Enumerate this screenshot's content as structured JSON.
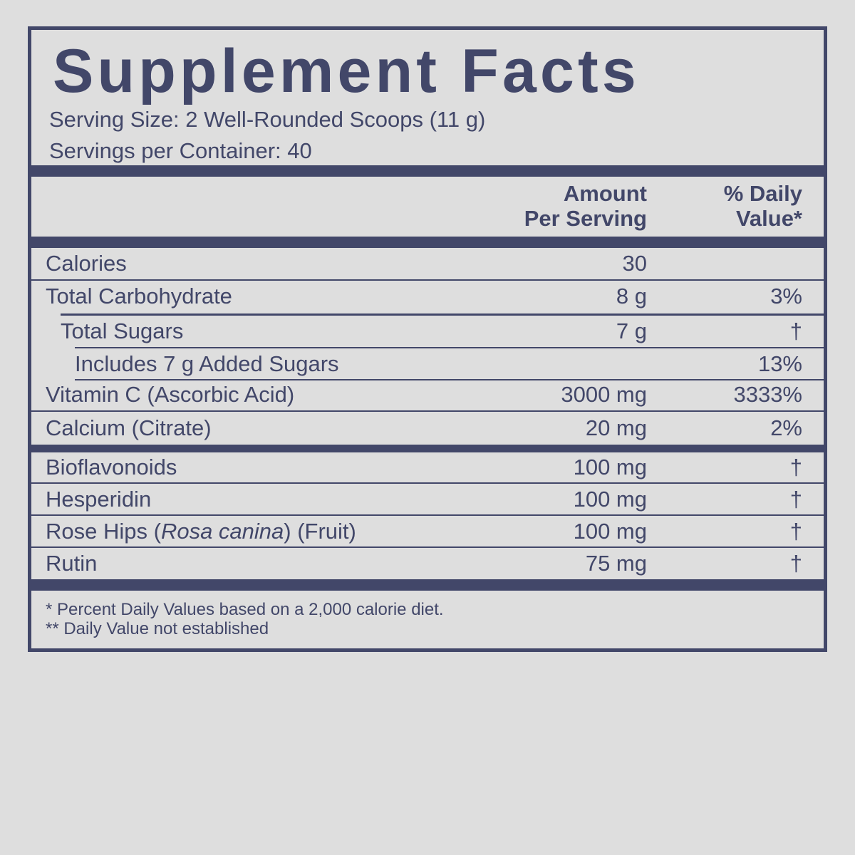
{
  "title": "Supplement Facts",
  "serving_size": "Serving Size: 2 Well-Rounded Scoops (11 g)",
  "servings_per_container": "Servings per Container: 40",
  "header": {
    "amount_line1": "Amount",
    "amount_line2": "Per Serving",
    "dv_line1": "% Daily",
    "dv_line2": "Value*"
  },
  "rows": [
    {
      "name": "Calories",
      "amount": "30",
      "dv": ""
    },
    {
      "name": "Total Carbohydrate",
      "amount": "8 g",
      "dv": "3%"
    },
    {
      "name": "Total Sugars",
      "amount": "7 g",
      "dv": "†"
    },
    {
      "name": "Includes 7 g Added Sugars",
      "amount": "",
      "dv": "13%"
    },
    {
      "name": "Vitamin C (Ascorbic Acid)",
      "amount": "3000 mg",
      "dv": "3333%"
    },
    {
      "name": "Calcium (Citrate)",
      "amount": "20 mg",
      "dv": "2%"
    },
    {
      "name": "Bioflavonoids",
      "amount": "100 mg",
      "dv": "†"
    },
    {
      "name": "Hesperidin",
      "amount": "100 mg",
      "dv": "†"
    },
    {
      "name_pre": "Rose Hips (",
      "name_italic": "Rosa canina",
      "name_post": ") (Fruit)",
      "amount": "100 mg",
      "dv": "†"
    },
    {
      "name": "Rutin",
      "amount": "75 mg",
      "dv": "†"
    }
  ],
  "footnotes": [
    "* Percent Daily Values based on a 2,000 calorie diet.",
    "** Daily Value not established"
  ],
  "colors": {
    "ink": "#424769",
    "background": "#dedede"
  }
}
